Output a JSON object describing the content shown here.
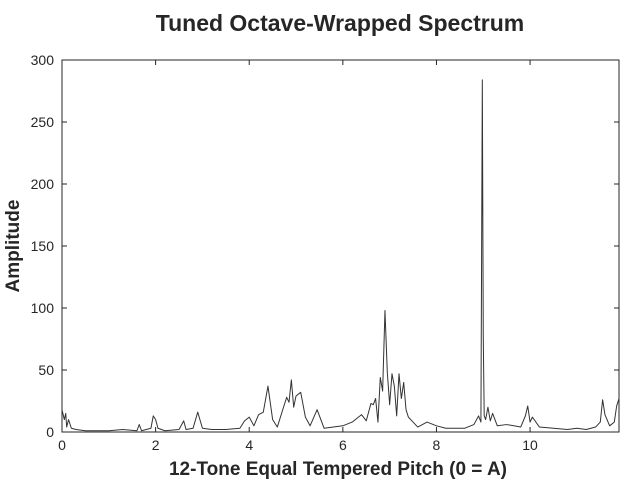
{
  "chart_data": {
    "type": "line",
    "title": "Tuned Octave-Wrapped Spectrum",
    "xlabel": "12-Tone Equal Tempered Pitch (0 = A)",
    "ylabel": "Amplitude",
    "xlim": [
      0,
      11.9
    ],
    "ylim": [
      0,
      300
    ],
    "xticks": [
      0,
      2,
      4,
      6,
      8,
      10
    ],
    "yticks": [
      0,
      50,
      100,
      150,
      200,
      250,
      300
    ],
    "grid": false,
    "color": "#333333",
    "series": [
      {
        "x": [
          0.0,
          0.05,
          0.08,
          0.1,
          0.14,
          0.2,
          0.3,
          0.5,
          0.8,
          1.0,
          1.3,
          1.6,
          1.65,
          1.7,
          1.9,
          1.95,
          2.0,
          2.05,
          2.2,
          2.5,
          2.6,
          2.65,
          2.8,
          2.9,
          3.0,
          3.2,
          3.5,
          3.8,
          3.9,
          4.0,
          4.1,
          4.2,
          4.3,
          4.4,
          4.5,
          4.6,
          4.7,
          4.8,
          4.85,
          4.9,
          4.95,
          5.0,
          5.1,
          5.2,
          5.3,
          5.45,
          5.6,
          5.8,
          6.0,
          6.2,
          6.4,
          6.5,
          6.6,
          6.65,
          6.7,
          6.75,
          6.8,
          6.85,
          6.9,
          6.95,
          7.0,
          7.05,
          7.1,
          7.15,
          7.2,
          7.25,
          7.3,
          7.35,
          7.4,
          7.5,
          7.6,
          7.8,
          8.0,
          8.2,
          8.4,
          8.6,
          8.8,
          8.9,
          8.95,
          8.98,
          9.0,
          9.02,
          9.05,
          9.1,
          9.15,
          9.2,
          9.3,
          9.5,
          9.8,
          9.9,
          9.95,
          10.0,
          10.05,
          10.2,
          10.5,
          10.8,
          11.0,
          11.2,
          11.4,
          11.5,
          11.55,
          11.6,
          11.7,
          11.8,
          11.85,
          11.9
        ],
        "values": [
          18,
          10,
          15,
          4,
          10,
          3,
          2,
          1,
          1,
          1,
          2,
          1,
          6,
          1,
          3,
          13,
          10,
          3,
          1,
          2,
          9,
          2,
          3,
          16,
          3,
          2,
          2,
          3,
          9,
          12,
          5,
          14,
          16,
          37,
          10,
          4,
          16,
          28,
          24,
          42,
          20,
          29,
          32,
          12,
          5,
          18,
          3,
          4,
          5,
          8,
          14,
          9,
          23,
          22,
          27,
          8,
          44,
          33,
          98,
          48,
          22,
          47,
          37,
          13,
          47,
          27,
          40,
          18,
          12,
          8,
          4,
          8,
          5,
          3,
          3,
          3,
          6,
          13,
          8,
          284,
          78,
          13,
          10,
          20,
          9,
          15,
          5,
          6,
          4,
          13,
          21,
          8,
          12,
          4,
          3,
          2,
          3,
          2,
          4,
          8,
          26,
          14,
          5,
          8,
          21,
          27
        ]
      }
    ]
  }
}
